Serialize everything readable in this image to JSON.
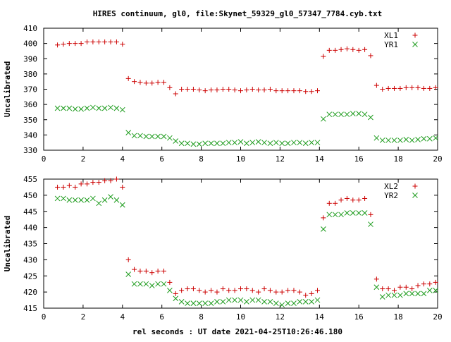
{
  "title": "HIRES continuum, gl0, file:Skynet_59329_gl0_57347_7784.cyb.txt",
  "xlabel": "rel seconds : UT date 2021-04-25T10:26:46.180",
  "colors": {
    "red": "#cc0000",
    "green": "#1a9a1a",
    "axis": "#000000"
  },
  "chart_data": [
    {
      "type": "scatter",
      "ylabel": "Uncalibrated",
      "xlim": [
        0,
        20
      ],
      "ylim": [
        330,
        410
      ],
      "xticks": [
        0,
        2,
        4,
        6,
        8,
        10,
        12,
        14,
        16,
        18,
        20
      ],
      "yticks": [
        330,
        340,
        350,
        360,
        370,
        380,
        390,
        400,
        410
      ],
      "legend": "top-right",
      "series": [
        {
          "name": "XL1",
          "marker": "plus",
          "color": "#cc0000",
          "x": [
            0.7,
            1.0,
            1.3,
            1.6,
            1.9,
            2.2,
            2.5,
            2.8,
            3.1,
            3.4,
            3.7,
            4.0,
            4.3,
            4.6,
            4.9,
            5.2,
            5.5,
            5.8,
            6.1,
            6.4,
            6.7,
            7.0,
            7.3,
            7.6,
            7.9,
            8.2,
            8.5,
            8.8,
            9.1,
            9.4,
            9.7,
            10.0,
            10.3,
            10.6,
            10.9,
            11.2,
            11.5,
            11.8,
            12.1,
            12.4,
            12.7,
            13.0,
            13.3,
            13.6,
            13.9,
            14.2,
            14.5,
            14.8,
            15.1,
            15.4,
            15.7,
            16.0,
            16.3,
            16.6,
            16.9,
            17.2,
            17.5,
            17.8,
            18.1,
            18.4,
            18.7,
            19.0,
            19.3,
            19.6,
            19.9
          ],
          "y": [
            399,
            399.5,
            400,
            400,
            400,
            401,
            401,
            401,
            401,
            401,
            401,
            399.5,
            377,
            375,
            374.5,
            374,
            374,
            374.5,
            374.5,
            371,
            367,
            370,
            370,
            370,
            369.5,
            369,
            369.5,
            369.5,
            370,
            370,
            369.5,
            369,
            369.5,
            370,
            369.5,
            369.5,
            370,
            369,
            369,
            369,
            369,
            369,
            368.5,
            368.5,
            369,
            391.5,
            395.5,
            395.5,
            396,
            396.5,
            396,
            395.5,
            396,
            392,
            372.5,
            370,
            370.5,
            370.5,
            370.5,
            371,
            371,
            371,
            370.5,
            370.5,
            371
          ]
        },
        {
          "name": "YR1",
          "marker": "cross",
          "color": "#1a9a1a",
          "x": [
            0.7,
            1.0,
            1.3,
            1.6,
            1.9,
            2.2,
            2.5,
            2.8,
            3.1,
            3.4,
            3.7,
            4.0,
            4.3,
            4.6,
            4.9,
            5.2,
            5.5,
            5.8,
            6.1,
            6.4,
            6.7,
            7.0,
            7.3,
            7.6,
            7.9,
            8.2,
            8.5,
            8.8,
            9.1,
            9.4,
            9.7,
            10.0,
            10.3,
            10.6,
            10.9,
            11.2,
            11.5,
            11.8,
            12.1,
            12.4,
            12.7,
            13.0,
            13.3,
            13.6,
            13.9,
            14.2,
            14.5,
            14.8,
            15.1,
            15.4,
            15.7,
            16.0,
            16.3,
            16.6,
            16.9,
            17.2,
            17.5,
            17.8,
            18.1,
            18.4,
            18.7,
            19.0,
            19.3,
            19.6,
            19.9
          ],
          "y": [
            357.5,
            357.5,
            357.5,
            357,
            357,
            357.5,
            358,
            357.5,
            357.5,
            358,
            357.5,
            356.5,
            341.5,
            339.5,
            339.5,
            339,
            339,
            339,
            339,
            338,
            336,
            334.5,
            334.5,
            334,
            334,
            334.5,
            334.5,
            334.5,
            334.5,
            335,
            335,
            335.5,
            334.5,
            335,
            335.5,
            335,
            334.5,
            335,
            334.5,
            334.5,
            335,
            335,
            334.5,
            335,
            335,
            350.5,
            353.5,
            353.5,
            353.5,
            353.5,
            354,
            354,
            353.5,
            351.5,
            338,
            336.5,
            336.5,
            336.5,
            336.5,
            337,
            336.5,
            337,
            337.5,
            337.5,
            338
          ]
        }
      ]
    },
    {
      "type": "scatter",
      "ylabel": "Uncalibrated",
      "xlim": [
        0,
        20
      ],
      "ylim": [
        415,
        455
      ],
      "xticks": [
        0,
        2,
        4,
        6,
        8,
        10,
        12,
        14,
        16,
        18,
        20
      ],
      "yticks": [
        415,
        420,
        425,
        430,
        435,
        440,
        445,
        450,
        455
      ],
      "legend": "top-right",
      "series": [
        {
          "name": "XL2",
          "marker": "plus",
          "color": "#cc0000",
          "x": [
            0.7,
            1.0,
            1.3,
            1.6,
            1.9,
            2.2,
            2.5,
            2.8,
            3.1,
            3.4,
            3.7,
            4.0,
            4.3,
            4.6,
            4.9,
            5.2,
            5.5,
            5.8,
            6.1,
            6.4,
            6.7,
            7.0,
            7.3,
            7.6,
            7.9,
            8.2,
            8.5,
            8.8,
            9.1,
            9.4,
            9.7,
            10.0,
            10.3,
            10.6,
            10.9,
            11.2,
            11.5,
            11.8,
            12.1,
            12.4,
            12.7,
            13.0,
            13.3,
            13.6,
            13.9,
            14.2,
            14.5,
            14.8,
            15.1,
            15.4,
            15.7,
            16.0,
            16.3,
            16.6,
            16.9,
            17.2,
            17.5,
            17.8,
            18.1,
            18.4,
            18.7,
            19.0,
            19.3,
            19.6,
            19.9
          ],
          "y": [
            452.5,
            452.5,
            453,
            452.5,
            453.5,
            453.5,
            454,
            454,
            454.5,
            454.5,
            455,
            452.5,
            430,
            427,
            426.5,
            426.5,
            426,
            426.5,
            426.5,
            423,
            419.5,
            420.5,
            421,
            421,
            420.5,
            420,
            420.5,
            420,
            421,
            420.5,
            420.5,
            421,
            421,
            420.5,
            420,
            421,
            420.5,
            420,
            420,
            420.5,
            420.5,
            420,
            419,
            419.5,
            420.5,
            443,
            447.5,
            447.5,
            448.5,
            449,
            448.5,
            448.5,
            449,
            444,
            424,
            421,
            421,
            420.5,
            421.5,
            421.5,
            421,
            422,
            422.5,
            422.5,
            423
          ]
        },
        {
          "name": "YR2",
          "marker": "cross",
          "color": "#1a9a1a",
          "x": [
            0.7,
            1.0,
            1.3,
            1.6,
            1.9,
            2.2,
            2.5,
            2.8,
            3.1,
            3.4,
            3.7,
            4.0,
            4.3,
            4.6,
            4.9,
            5.2,
            5.5,
            5.8,
            6.1,
            6.4,
            6.7,
            7.0,
            7.3,
            7.6,
            7.9,
            8.2,
            8.5,
            8.8,
            9.1,
            9.4,
            9.7,
            10.0,
            10.3,
            10.6,
            10.9,
            11.2,
            11.5,
            11.8,
            12.1,
            12.4,
            12.7,
            13.0,
            13.3,
            13.6,
            13.9,
            14.2,
            14.5,
            14.8,
            15.1,
            15.4,
            15.7,
            16.0,
            16.3,
            16.6,
            16.9,
            17.2,
            17.5,
            17.8,
            18.1,
            18.4,
            18.7,
            19.0,
            19.3,
            19.6,
            19.9
          ],
          "y": [
            449,
            449,
            448.5,
            448.5,
            448.5,
            448.5,
            449,
            447.5,
            448.5,
            449.5,
            448.5,
            447,
            425.5,
            422.5,
            422.5,
            422.5,
            422,
            422.5,
            422.5,
            420.5,
            418,
            417,
            416.5,
            416.5,
            416.5,
            416.5,
            416.5,
            417,
            417,
            417.5,
            417.5,
            417.5,
            417,
            417.5,
            417.5,
            417,
            417,
            416.5,
            416,
            416.5,
            416.5,
            417,
            417,
            417,
            417.5,
            439.5,
            444,
            444,
            444,
            444.5,
            444.5,
            444.5,
            444.5,
            441,
            421.5,
            418.5,
            419,
            419,
            419,
            419.5,
            419.5,
            419.5,
            419.5,
            420.5,
            420.5
          ]
        }
      ]
    }
  ]
}
